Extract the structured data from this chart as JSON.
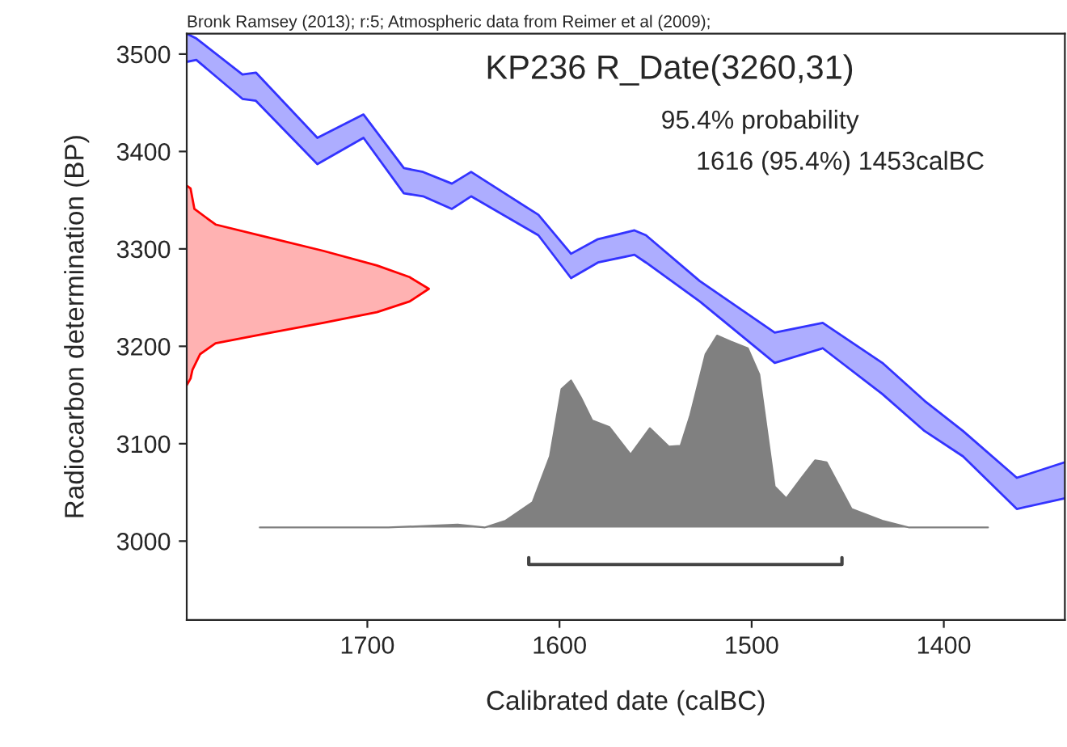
{
  "chart_data": {
    "type": "area",
    "title": "KP236 R_Date(3260,31)",
    "xlabel": "Calibrated date (calBC)",
    "ylabel": "Radiocarbon determination (BP)",
    "annotations": [
      "Bronk Ramsey (2013); r:5; Atmospheric data from Reimer et al (2009);",
      "95.4% probability",
      "1616 (95.4%) 1453calBC"
    ],
    "xlim": [
      1794,
      1337
    ],
    "ylim": [
      2919,
      3521
    ],
    "xticks": [
      1700,
      1600,
      1500,
      1400
    ],
    "yticks": [
      3000,
      3100,
      3200,
      3300,
      3400,
      3500
    ],
    "grid": false,
    "series": [
      {
        "type": "line",
        "color": "#3333ff",
        "x": [
          1794,
          1789,
          1765,
          1758,
          1726,
          1702,
          1681,
          1671,
          1656,
          1646,
          1611,
          1594,
          1580,
          1561,
          1555,
          1527,
          1488,
          1463,
          1432,
          1410,
          1390,
          1362,
          1337
        ],
        "values": [
          3492,
          3494,
          3454,
          3452,
          3387,
          3414,
          3357,
          3354,
          3341,
          3354,
          3314,
          3270,
          3286,
          3294,
          3286,
          3246,
          3183,
          3198,
          3151,
          3113,
          3087,
          3033,
          3044
        ]
      },
      {
        "color": "#3333ff",
        "x": [
          1794,
          1789,
          1765,
          1758,
          1726,
          1702,
          1681,
          1671,
          1656,
          1646,
          1611,
          1594,
          1580,
          1561,
          1555,
          1527,
          1488,
          1463,
          1432,
          1410,
          1390,
          1362,
          1337
        ],
        "values": [
          3521,
          3516,
          3479,
          3481,
          3414,
          3438,
          3383,
          3379,
          3367,
          3379,
          3335,
          3295,
          3310,
          3319,
          3314,
          3267,
          3214,
          3224,
          3183,
          3144,
          3113,
          3065,
          3081
        ]
      },
      {
        "color": "#ff0000",
        "x": [
          1794,
          1792,
          1790,
          1779,
          1750,
          1723,
          1695,
          1678,
          1668,
          1678,
          1695,
          1723,
          1750,
          1779,
          1787,
          1791,
          1792,
          1794
        ],
        "values": [
          3365,
          3362,
          3341,
          3325,
          3311,
          3298,
          3283,
          3271,
          3259,
          3246,
          3235,
          3224,
          3214,
          3203,
          3192,
          3176,
          3167,
          3160
        ]
      },
      {
        "color": "#808080",
        "x": [
          1756,
          1689,
          1653,
          1639,
          1628,
          1614,
          1605,
          1599,
          1594,
          1589,
          1583,
          1574,
          1563,
          1553,
          1543,
          1537,
          1532,
          1524,
          1518,
          1511,
          1502,
          1496,
          1488,
          1482,
          1474,
          1467,
          1461,
          1448,
          1432,
          1418,
          1377
        ],
        "values": [
          3014,
          3014,
          3017,
          3014,
          3021,
          3040,
          3087,
          3156,
          3165,
          3148,
          3124,
          3117,
          3089,
          3116,
          3097,
          3098,
          3129,
          3192,
          3211,
          3205,
          3198,
          3171,
          3056,
          3044,
          3065,
          3083,
          3081,
          3033,
          3021,
          3014,
          3014
        ]
      },
      {
        "type": "line",
        "color": "#444444",
        "x": [
          1616,
          1616,
          1453,
          1453
        ],
        "values": [
          2983,
          2976,
          2976,
          2983
        ]
      }
    ]
  }
}
